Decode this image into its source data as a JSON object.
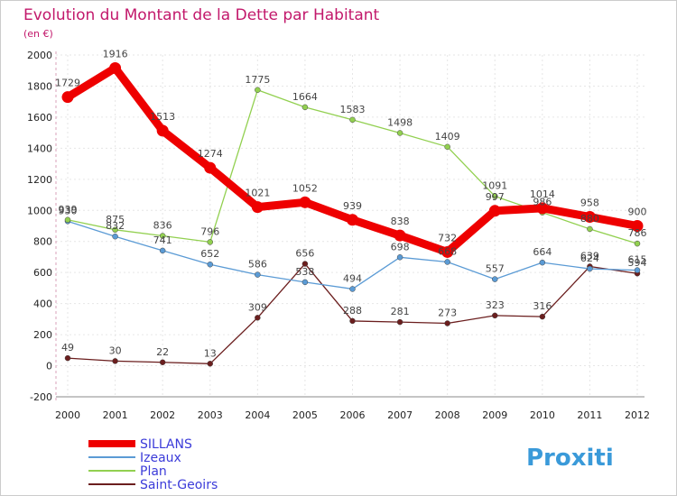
{
  "chart_data": {
    "type": "line",
    "title": "Evolution du Montant de la Dette par Habitant",
    "subtitle": "(en €)",
    "xlabel": "",
    "ylabel": "",
    "categories": [
      "2000",
      "2001",
      "2002",
      "2003",
      "2004",
      "2005",
      "2006",
      "2007",
      "2008",
      "2009",
      "2010",
      "2011",
      "2012"
    ],
    "ylim": [
      -200,
      2000
    ],
    "yticks": [
      -200,
      0,
      200,
      400,
      600,
      800,
      1000,
      1200,
      1400,
      1600,
      1800,
      2000
    ],
    "grid": true,
    "legend_position": "bottom-left",
    "series": [
      {
        "name": "SILLANS",
        "color": "#ee0000",
        "values": [
          1729,
          1916,
          1513,
          1274,
          1021,
          1052,
          939,
          838,
          732,
          997,
          1014,
          958,
          900
        ]
      },
      {
        "name": "Izeaux",
        "color": "#5b9bd5",
        "values": [
          930,
          832,
          741,
          652,
          586,
          538,
          494,
          698,
          668,
          557,
          664,
          624,
          615
        ]
      },
      {
        "name": "Plan",
        "color": "#92d050",
        "values": [
          939,
          875,
          836,
          796,
          1775,
          1664,
          1583,
          1498,
          1409,
          1091,
          986,
          880,
          786
        ]
      },
      {
        "name": "Saint-Geoirs",
        "color": "#6b1e1e",
        "values": [
          49,
          30,
          22,
          13,
          309,
          656,
          288,
          281,
          273,
          323,
          316,
          639,
          594
        ]
      }
    ]
  },
  "watermark": "Proxiti"
}
